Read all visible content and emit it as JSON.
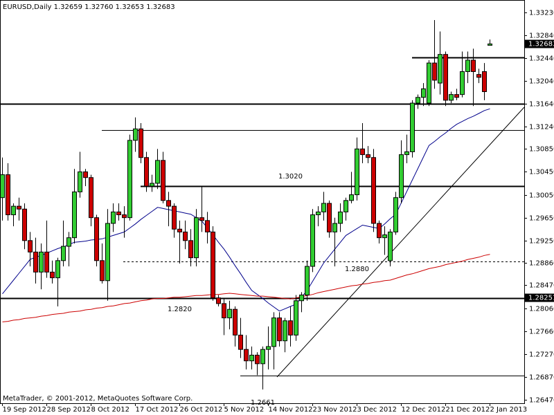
{
  "chart_data": {
    "type": "candlestick",
    "title": "EURUSD,Daily  1.32659 1.32760 1.32653 1.32683",
    "credit": "MetaTrader, © 2001-2012, MetaQuotes Software Corp.",
    "up_color": "#32cd32",
    "down_color": "#cc0000",
    "categories": [
      "19 Sep 2012",
      null,
      null,
      null,
      null,
      null,
      null,
      null,
      "28 Sep 2012",
      null,
      null,
      null,
      null,
      null,
      null,
      null,
      "8 Oct 2012",
      null,
      null,
      null,
      null,
      null,
      null,
      null,
      "17 Oct 2012",
      null,
      null,
      null,
      null,
      null,
      null,
      null,
      "26 Oct 2012",
      null,
      null,
      null,
      null,
      null,
      null,
      null,
      "5 Nov 2012",
      null,
      null,
      null,
      null,
      null,
      null,
      null,
      "14 Nov 2012",
      null,
      null,
      null,
      null,
      null,
      null,
      null,
      "23 Nov 2012",
      null,
      null,
      null,
      null,
      null,
      null,
      null,
      "3 Dec 2012",
      null,
      null,
      null,
      null,
      null,
      null,
      null,
      "12 Dec 2012",
      null,
      null,
      null,
      null,
      null,
      null,
      null,
      "21 Dec 2012",
      null,
      null,
      null,
      null,
      null,
      null,
      null,
      "2 Jan 2013"
    ],
    "open": [
      1.3,
      1.304,
      1.297,
      1.2985,
      1.298,
      1.2925,
      1.2905,
      1.287,
      1.2905,
      1.287,
      1.286,
      1.289,
      1.2915,
      1.293,
      1.301,
      1.3045,
      1.3035,
      1.2965,
      1.289,
      1.2855,
      1.2955,
      1.2975,
      1.297,
      1.2965,
      1.31,
      1.312,
      1.307,
      1.302,
      1.3025,
      1.3065,
      1.2995,
      1.2985,
      1.2945,
      1.294,
      1.2925,
      1.2895,
      1.2965,
      1.296,
      1.294,
      1.2825,
      1.2815,
      1.279,
      1.2805,
      1.276,
      1.2735,
      1.2715,
      1.2725,
      1.271,
      1.2735,
      1.274,
      1.279,
      1.275,
      1.2785,
      1.276,
      1.282,
      1.283,
      1.288,
      1.297,
      1.2975,
      1.299,
      1.294,
      1.2955,
      1.2975,
      1.2995,
      1.3005,
      1.3085,
      1.3075,
      1.307,
      1.2955,
      1.293,
      1.289,
      1.294,
      1.3,
      1.3075,
      1.308,
      1.3165,
      1.3175,
      1.3165,
      1.3235,
      1.32,
      1.325,
      1.317,
      1.318,
      1.318,
      1.322,
      1.324,
      1.3215,
      1.322,
      1.32659
    ],
    "high": [
      1.307,
      1.306,
      1.299,
      1.3,
      1.299,
      1.294,
      1.293,
      1.292,
      1.296,
      1.289,
      1.2895,
      1.296,
      1.294,
      1.305,
      1.308,
      1.305,
      1.304,
      1.297,
      1.292,
      1.298,
      1.299,
      1.299,
      1.2985,
      1.311,
      1.314,
      1.313,
      1.308,
      1.304,
      1.3085,
      1.308,
      1.301,
      1.299,
      1.296,
      1.296,
      1.2945,
      1.298,
      1.302,
      1.2975,
      1.295,
      1.283,
      1.2825,
      1.282,
      1.281,
      1.279,
      1.276,
      1.274,
      1.273,
      1.274,
      1.2775,
      1.28,
      1.28,
      1.279,
      1.281,
      1.283,
      1.2835,
      1.289,
      1.298,
      1.2985,
      1.301,
      1.2995,
      1.2965,
      1.299,
      1.3,
      1.3045,
      1.3105,
      1.313,
      1.309,
      1.3085,
      1.296,
      1.295,
      1.2945,
      1.301,
      1.31,
      1.311,
      1.317,
      1.318,
      1.32,
      1.324,
      1.331,
      1.329,
      1.3255,
      1.3185,
      1.319,
      1.3255,
      1.3255,
      1.326,
      1.3225,
      1.3235,
      1.3276
    ],
    "low": [
      1.296,
      1.296,
      1.295,
      1.296,
      1.291,
      1.288,
      1.285,
      1.284,
      1.286,
      1.285,
      1.281,
      1.288,
      1.288,
      1.292,
      1.3,
      1.302,
      1.295,
      1.288,
      1.285,
      1.282,
      1.294,
      1.296,
      1.293,
      1.296,
      1.308,
      1.306,
      1.301,
      1.301,
      1.3015,
      1.299,
      1.295,
      1.293,
      1.2885,
      1.291,
      1.288,
      1.288,
      1.294,
      1.292,
      1.282,
      1.281,
      1.276,
      1.277,
      1.274,
      1.272,
      1.27,
      1.27,
      1.269,
      1.2665,
      1.27,
      1.27,
      1.274,
      1.273,
      1.274,
      1.275,
      1.28,
      1.282,
      1.287,
      1.295,
      1.296,
      1.293,
      1.288,
      1.294,
      1.296,
      1.299,
      1.2995,
      1.306,
      1.306,
      1.294,
      1.292,
      1.29,
      1.288,
      1.2935,
      1.299,
      1.306,
      1.307,
      1.3155,
      1.316,
      1.316,
      1.319,
      1.318,
      1.316,
      1.3165,
      1.317,
      1.3175,
      1.32,
      1.316,
      1.32,
      1.317,
      1.32653
    ],
    "close": [
      1.304,
      1.297,
      1.2985,
      1.298,
      1.2925,
      1.2905,
      1.287,
      1.2905,
      1.287,
      1.286,
      1.289,
      1.2915,
      1.293,
      1.301,
      1.3045,
      1.3035,
      1.2965,
      1.289,
      1.2855,
      1.2955,
      1.2975,
      1.297,
      1.2965,
      1.31,
      1.312,
      1.307,
      1.302,
      1.3025,
      1.3065,
      1.2995,
      1.2985,
      1.2945,
      1.294,
      1.2925,
      1.2895,
      1.2965,
      1.296,
      1.294,
      1.2825,
      1.2815,
      1.279,
      1.2805,
      1.276,
      1.2735,
      1.2715,
      1.2725,
      1.271,
      1.2735,
      1.274,
      1.279,
      1.275,
      1.2785,
      1.276,
      1.282,
      1.283,
      1.288,
      1.297,
      1.2975,
      1.299,
      1.294,
      1.2955,
      1.2975,
      1.2995,
      1.3005,
      1.3085,
      1.3075,
      1.307,
      1.2955,
      1.293,
      1.2935,
      1.294,
      1.3,
      1.3075,
      1.308,
      1.3165,
      1.3175,
      1.319,
      1.3235,
      1.3205,
      1.325,
      1.317,
      1.318,
      1.3175,
      1.322,
      1.324,
      1.322,
      1.321,
      1.3185,
      1.32683
    ],
    "lines": [
      {
        "color": "#00008b",
        "values": [
          1.2832,
          1.2844,
          1.2856,
          1.2868,
          1.288,
          1.2892,
          1.2896,
          1.2899,
          1.2903,
          1.2907,
          1.2911,
          1.2914,
          1.2918,
          1.2922,
          1.2923,
          1.2924,
          1.2926,
          1.2927,
          1.2928,
          1.2931,
          1.2934,
          1.2937,
          1.294,
          1.2947,
          1.2954,
          1.2962,
          1.2969,
          1.2976,
          1.2983,
          1.2981,
          1.2979,
          1.2977,
          1.2975,
          1.2973,
          1.2971,
          1.2965,
          1.2959,
          1.2947,
          1.2935,
          1.2922,
          1.291,
          1.2896,
          1.2881,
          1.2867,
          1.2852,
          1.2838,
          1.2831,
          1.2824,
          1.2816,
          1.2809,
          1.2802,
          1.2806,
          1.281,
          1.2814,
          1.2826,
          1.2838,
          1.2854,
          1.287,
          1.2886,
          1.2898,
          1.291,
          1.2922,
          1.2934,
          1.294,
          1.2946,
          1.2952,
          1.295,
          1.2948,
          1.2946,
          1.2954,
          1.2963,
          1.2971,
          1.2991,
          1.3011,
          1.3031,
          1.3051,
          1.3071,
          1.3091,
          1.3098,
          1.3106,
          1.3113,
          1.3121,
          1.3128,
          1.3133,
          1.3138,
          1.3142,
          1.3147,
          1.3152,
          1.3155
        ]
      },
      {
        "color": "#cc0000",
        "values": [
          1.2783,
          1.2784,
          1.2786,
          1.2787,
          1.2789,
          1.279,
          1.2791,
          1.2793,
          1.2794,
          1.2796,
          1.2797,
          1.2798,
          1.28,
          1.2801,
          1.2802,
          1.2804,
          1.2805,
          1.2807,
          1.2808,
          1.281,
          1.2811,
          1.2813,
          1.2815,
          1.2816,
          1.2818,
          1.282,
          1.2821,
          1.2823,
          1.2824,
          1.2824,
          1.2825,
          1.2826,
          1.2826,
          1.2827,
          1.2828,
          1.2829,
          1.2829,
          1.283,
          1.2831,
          1.2831,
          1.2832,
          1.2833,
          1.2832,
          1.2831,
          1.283,
          1.2829,
          1.2828,
          1.2828,
          1.2827,
          1.2826,
          1.2825,
          1.2824,
          1.2823,
          1.2825,
          1.2827,
          1.2829,
          1.2831,
          1.2834,
          1.2836,
          1.2838,
          1.284,
          1.2842,
          1.2844,
          1.2846,
          1.2847,
          1.2849,
          1.285,
          1.2852,
          1.2853,
          1.2855,
          1.2856,
          1.2859,
          1.2862,
          1.2865,
          1.2867,
          1.287,
          1.2873,
          1.2876,
          1.2878,
          1.288,
          1.2883,
          1.2885,
          1.2887,
          1.2889,
          1.2892,
          1.2894,
          1.2896,
          1.2899,
          1.2901
        ]
      }
    ],
    "levels": [
      1.3164,
      1.3245,
      1.3118,
      1.302,
      1.2888,
      1.2825,
      1.2689
    ],
    "annotations": [
      "1.3020",
      "1.2880",
      "1.2820",
      "1.2661"
    ],
    "price_marks": [
      1.32683,
      1.28251
    ],
    "ylim": [
      1.2641,
      1.3345
    ],
    "yticks": [
      {
        "value": 1.3323,
        "label": "1.33230"
      },
      {
        "value": 1.3284,
        "label": "1.32840"
      },
      {
        "value": 1.3244,
        "label": "1.32440"
      },
      {
        "value": 1.3204,
        "label": "1.32040"
      },
      {
        "value": 1.3164,
        "label": "1.31640"
      },
      {
        "value": 1.3124,
        "label": "1.31240"
      },
      {
        "value": 1.3085,
        "label": "1.30850"
      },
      {
        "value": 1.3045,
        "label": "1.30450"
      },
      {
        "value": 1.3005,
        "label": "1.30050"
      },
      {
        "value": 1.2965,
        "label": "1.29650"
      },
      {
        "value": 1.2925,
        "label": "1.29250"
      },
      {
        "value": 1.2886,
        "label": "1.28860"
      },
      {
        "value": 1.2847,
        "label": "1.28470"
      },
      {
        "value": 1.2806,
        "label": "1.28060"
      },
      {
        "value": 1.2766,
        "label": "1.27660"
      },
      {
        "value": 1.2727,
        "label": "1.27270"
      },
      {
        "value": 1.2687,
        "label": "1.26870"
      },
      {
        "value": 1.2647,
        "label": "1.26470"
      }
    ]
  }
}
